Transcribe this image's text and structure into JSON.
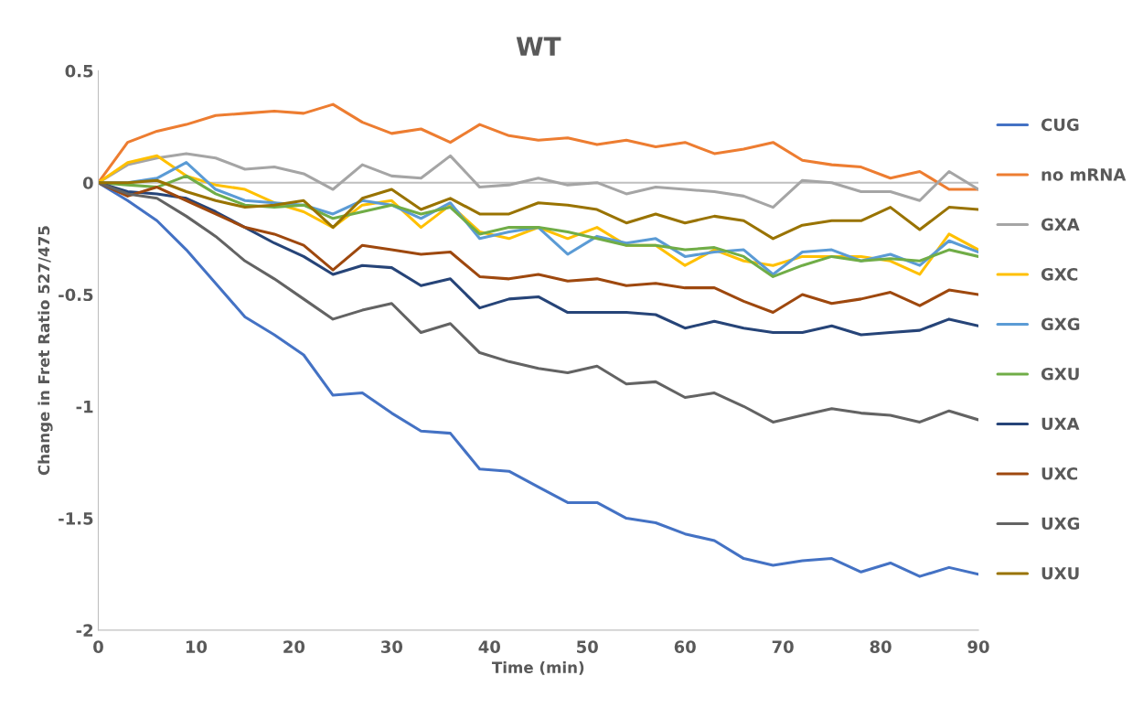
{
  "chart_data": {
    "type": "line",
    "title": "WT",
    "xlabel": "Time (min)",
    "ylabel": "Change in Fret Ratio 527/475",
    "x": [
      0,
      3,
      6,
      9,
      12,
      15,
      18,
      21,
      24,
      27,
      30,
      33,
      36,
      39,
      42,
      45,
      48,
      51,
      54,
      57,
      60,
      63,
      66,
      69,
      72,
      75,
      78,
      81,
      84,
      87,
      90
    ],
    "xlim": [
      0,
      90
    ],
    "xticks": [
      0,
      10,
      20,
      30,
      40,
      50,
      60,
      70,
      80,
      90
    ],
    "ylim": [
      -2,
      0.5
    ],
    "yticks": [
      {
        "value": -2,
        "label": "-2"
      },
      {
        "value": -1.5,
        "label": "-1.5"
      },
      {
        "value": -1,
        "label": "-1"
      },
      {
        "value": -0.5,
        "label": "-0.5"
      },
      0,
      0.5
    ],
    "grid": false,
    "legend": "right",
    "marker": "none",
    "line_style": "solid",
    "ref_lines": [
      {
        "axis": "y",
        "value": 0,
        "color": "#bfbfbf"
      }
    ],
    "series": [
      {
        "name": "CUG",
        "color": "#4472c4",
        "values": [
          0,
          -0.08,
          -0.17,
          -0.3,
          -0.45,
          -0.6,
          -0.68,
          -0.77,
          -0.95,
          -0.94,
          -1.03,
          -1.11,
          -1.12,
          -1.28,
          -1.29,
          -1.36,
          -1.43,
          -1.43,
          -1.5,
          -1.52,
          -1.57,
          -1.6,
          -1.68,
          -1.71,
          -1.69,
          -1.68,
          -1.74,
          -1.7,
          -1.76,
          -1.72,
          -1.75
        ]
      },
      {
        "name": "no mRNA",
        "color": "#ed7d31",
        "values": [
          0,
          0.18,
          0.23,
          0.26,
          0.3,
          0.31,
          0.32,
          0.31,
          0.35,
          0.27,
          0.22,
          0.24,
          0.18,
          0.26,
          0.21,
          0.19,
          0.2,
          0.17,
          0.19,
          0.16,
          0.18,
          0.13,
          0.15,
          0.18,
          0.1,
          0.08,
          0.07,
          0.02,
          0.05,
          -0.03,
          -0.03
        ]
      },
      {
        "name": "GXA",
        "color": "#a5a5a5",
        "values": [
          0,
          0.08,
          0.11,
          0.13,
          0.11,
          0.06,
          0.07,
          0.04,
          -0.03,
          0.08,
          0.03,
          0.02,
          0.12,
          -0.02,
          -0.01,
          0.02,
          -0.01,
          0,
          -0.05,
          -0.02,
          -0.03,
          -0.04,
          -0.06,
          -0.11,
          0.01,
          0,
          -0.04,
          -0.04,
          -0.08,
          0.05,
          -0.03
        ]
      },
      {
        "name": "GXC",
        "color": "#ffc000",
        "values": [
          0,
          0.09,
          0.12,
          0.03,
          -0.01,
          -0.03,
          -0.09,
          -0.13,
          -0.2,
          -0.1,
          -0.08,
          -0.2,
          -0.1,
          -0.22,
          -0.25,
          -0.2,
          -0.25,
          -0.2,
          -0.28,
          -0.28,
          -0.37,
          -0.3,
          -0.35,
          -0.37,
          -0.33,
          -0.33,
          -0.33,
          -0.35,
          -0.41,
          -0.23,
          -0.3
        ]
      },
      {
        "name": "GXG",
        "color": "#5b9bd5",
        "values": [
          0,
          0,
          0.02,
          0.09,
          -0.03,
          -0.08,
          -0.09,
          -0.1,
          -0.14,
          -0.08,
          -0.1,
          -0.16,
          -0.09,
          -0.25,
          -0.22,
          -0.2,
          -0.32,
          -0.24,
          -0.27,
          -0.25,
          -0.33,
          -0.31,
          -0.3,
          -0.41,
          -0.31,
          -0.3,
          -0.35,
          -0.32,
          -0.37,
          -0.26,
          -0.31
        ]
      },
      {
        "name": "GXU",
        "color": "#70ad47",
        "values": [
          0,
          -0.01,
          -0.02,
          0.03,
          -0.05,
          -0.1,
          -0.11,
          -0.1,
          -0.16,
          -0.13,
          -0.1,
          -0.14,
          -0.11,
          -0.23,
          -0.2,
          -0.2,
          -0.22,
          -0.25,
          -0.28,
          -0.28,
          -0.3,
          -0.29,
          -0.33,
          -0.42,
          -0.37,
          -0.33,
          -0.35,
          -0.34,
          -0.35,
          -0.3,
          -0.33
        ]
      },
      {
        "name": "UXA",
        "color": "#264478",
        "values": [
          0,
          -0.04,
          -0.05,
          -0.07,
          -0.13,
          -0.2,
          -0.27,
          -0.33,
          -0.41,
          -0.37,
          -0.38,
          -0.46,
          -0.43,
          -0.56,
          -0.52,
          -0.51,
          -0.58,
          -0.58,
          -0.58,
          -0.59,
          -0.65,
          -0.62,
          -0.65,
          -0.67,
          -0.67,
          -0.64,
          -0.68,
          -0.67,
          -0.66,
          -0.61,
          -0.64
        ]
      },
      {
        "name": "UXC",
        "color": "#9e480e",
        "values": [
          0,
          -0.06,
          -0.02,
          -0.08,
          -0.14,
          -0.2,
          -0.23,
          -0.28,
          -0.39,
          -0.28,
          -0.3,
          -0.32,
          -0.31,
          -0.42,
          -0.43,
          -0.41,
          -0.44,
          -0.43,
          -0.46,
          -0.45,
          -0.47,
          -0.47,
          -0.53,
          -0.58,
          -0.5,
          -0.54,
          -0.52,
          -0.49,
          -0.55,
          -0.48,
          -0.5
        ]
      },
      {
        "name": "UXG",
        "color": "#636363",
        "values": [
          0,
          -0.05,
          -0.07,
          -0.15,
          -0.24,
          -0.35,
          -0.43,
          -0.52,
          -0.61,
          -0.57,
          -0.54,
          -0.67,
          -0.63,
          -0.76,
          -0.8,
          -0.83,
          -0.85,
          -0.82,
          -0.9,
          -0.89,
          -0.96,
          -0.94,
          -1.0,
          -1.07,
          -1.04,
          -1.01,
          -1.03,
          -1.04,
          -1.07,
          -1.02,
          -1.06
        ]
      },
      {
        "name": "UXU",
        "color": "#997300",
        "values": [
          0,
          0,
          0.01,
          -0.04,
          -0.08,
          -0.11,
          -0.1,
          -0.08,
          -0.2,
          -0.07,
          -0.03,
          -0.12,
          -0.07,
          -0.14,
          -0.14,
          -0.09,
          -0.1,
          -0.12,
          -0.18,
          -0.14,
          -0.18,
          -0.15,
          -0.17,
          -0.25,
          -0.19,
          -0.17,
          -0.17,
          -0.11,
          -0.21,
          -0.11,
          -0.12
        ]
      }
    ]
  }
}
